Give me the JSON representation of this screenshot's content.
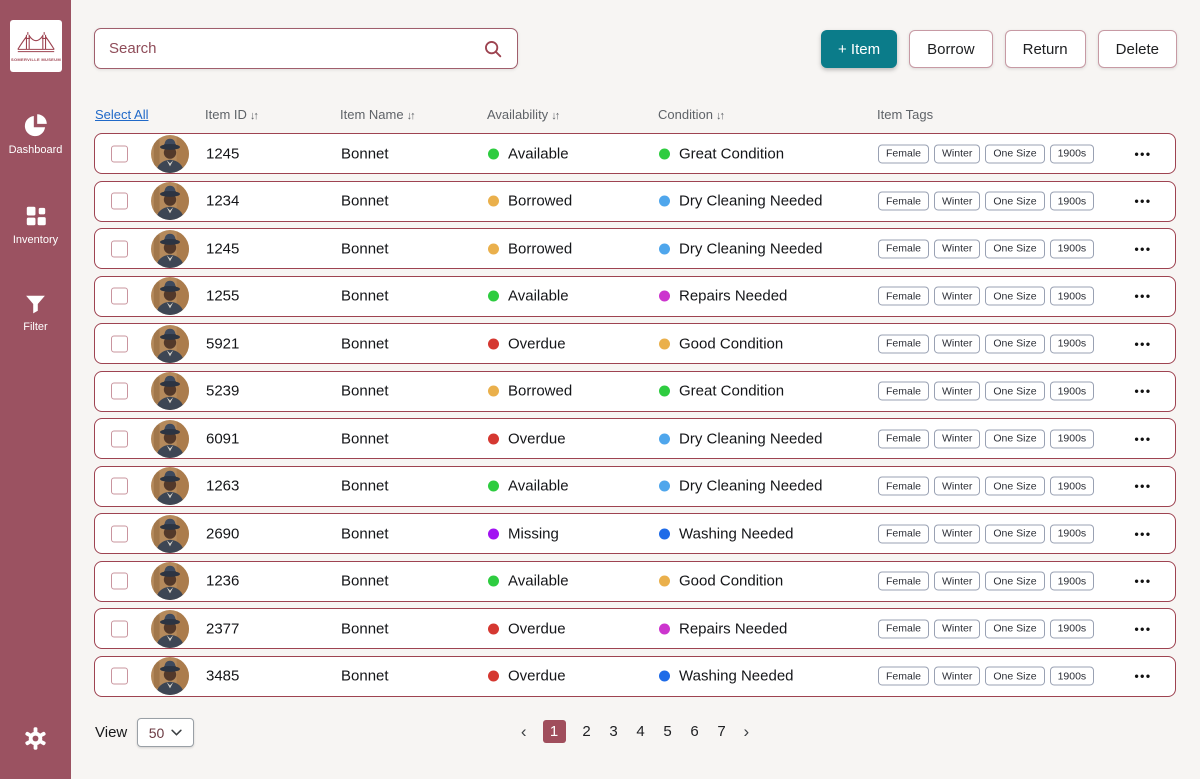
{
  "sidebar": {
    "logo_text": "SOMERVILLE MUSEUM",
    "items": [
      {
        "label": "Dashboard",
        "icon": "pie-chart-icon"
      },
      {
        "label": "Inventory",
        "icon": "grid-icon"
      },
      {
        "label": "Filter",
        "icon": "funnel-icon"
      }
    ]
  },
  "toolbar": {
    "search": {
      "placeholder": "Search",
      "value": ""
    },
    "buttons": [
      {
        "label": "+ Item"
      },
      {
        "label": "Borrow"
      },
      {
        "label": "Return"
      },
      {
        "label": "Delete"
      }
    ]
  },
  "table": {
    "select_all_label": "Select All",
    "sort_icon": "↓↑",
    "columns": [
      "Item ID",
      "Item Name",
      "Availability",
      "Condition",
      "Item Tags"
    ],
    "ellipsis": "•••",
    "rows": [
      {
        "id": "1245",
        "name": "Bonnet",
        "availability": "Available",
        "availability_color": "#2ecc40",
        "condition": "Great Condition",
        "condition_color": "#2ecc40",
        "tags": [
          "Female",
          "Winter",
          "One Size",
          "1900s"
        ]
      },
      {
        "id": "1234",
        "name": "Bonnet",
        "availability": "Borrowed",
        "availability_color": "#eab04c",
        "condition": "Dry Cleaning Needed",
        "condition_color": "#4fa6ec",
        "tags": [
          "Female",
          "Winter",
          "One Size",
          "1900s"
        ]
      },
      {
        "id": "1245",
        "name": "Bonnet",
        "availability": "Borrowed",
        "availability_color": "#eab04c",
        "condition": "Dry Cleaning Needed",
        "condition_color": "#4fa6ec",
        "tags": [
          "Female",
          "Winter",
          "One Size",
          "1900s"
        ]
      },
      {
        "id": "1255",
        "name": "Bonnet",
        "availability": "Available",
        "availability_color": "#2ecc40",
        "condition": "Repairs Needed",
        "condition_color": "#cc35ce",
        "tags": [
          "Female",
          "Winter",
          "One Size",
          "1900s"
        ]
      },
      {
        "id": "5921",
        "name": "Bonnet",
        "availability": "Overdue",
        "availability_color": "#d53831",
        "condition": "Good Condition",
        "condition_color": "#eab04c",
        "tags": [
          "Female",
          "Winter",
          "One Size",
          "1900s"
        ]
      },
      {
        "id": "5239",
        "name": "Bonnet",
        "availability": "Borrowed",
        "availability_color": "#eab04c",
        "condition": "Great Condition",
        "condition_color": "#2ecc40",
        "tags": [
          "Female",
          "Winter",
          "One Size",
          "1900s"
        ]
      },
      {
        "id": "6091",
        "name": "Bonnet",
        "availability": "Overdue",
        "availability_color": "#d53831",
        "condition": "Dry Cleaning Needed",
        "condition_color": "#4fa6ec",
        "tags": [
          "Female",
          "Winter",
          "One Size",
          "1900s"
        ]
      },
      {
        "id": "1263",
        "name": "Bonnet",
        "availability": "Available",
        "availability_color": "#2ecc40",
        "condition": "Dry Cleaning Needed",
        "condition_color": "#4fa6ec",
        "tags": [
          "Female",
          "Winter",
          "One Size",
          "1900s"
        ]
      },
      {
        "id": "2690",
        "name": "Bonnet",
        "availability": "Missing",
        "availability_color": "#a213f2",
        "condition": "Washing Needed",
        "condition_color": "#1e6be8",
        "tags": [
          "Female",
          "Winter",
          "One Size",
          "1900s"
        ]
      },
      {
        "id": "1236",
        "name": "Bonnet",
        "availability": "Available",
        "availability_color": "#2ecc40",
        "condition": "Good Condition",
        "condition_color": "#eab04c",
        "tags": [
          "Female",
          "Winter",
          "One Size",
          "1900s"
        ]
      },
      {
        "id": "2377",
        "name": "Bonnet",
        "availability": "Overdue",
        "availability_color": "#d53831",
        "condition": "Repairs Needed",
        "condition_color": "#cc35ce",
        "tags": [
          "Female",
          "Winter",
          "One Size",
          "1900s"
        ]
      },
      {
        "id": "3485",
        "name": "Bonnet",
        "availability": "Overdue",
        "availability_color": "#d53831",
        "condition": "Washing Needed",
        "condition_color": "#1e6be8",
        "tags": [
          "Female",
          "Winter",
          "One Size",
          "1900s"
        ]
      }
    ]
  },
  "footer": {
    "view_label": "View",
    "view_value": "50",
    "pagination": {
      "prev": "‹",
      "next": "›",
      "pages": [
        "1",
        "2",
        "3",
        "4",
        "5",
        "6",
        "7"
      ],
      "active": "1"
    }
  },
  "colors": {
    "sidebar": "#9b5261",
    "accent_teal": "#0b7c8a",
    "row_border": "#9e4351",
    "link_blue": "#2069c8",
    "active_page": "#a04e5c"
  }
}
